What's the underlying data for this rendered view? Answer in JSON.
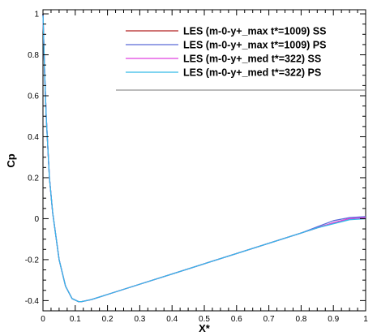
{
  "chart_data": {
    "type": "line",
    "xlabel": "X*",
    "ylabel": "Cp",
    "xlim": [
      0,
      1
    ],
    "ylim": [
      -0.45,
      1.02
    ],
    "x_ticks": [
      "0",
      "0.1",
      "0.2",
      "0.3",
      "0.4",
      "0.5",
      "0.6",
      "0.7",
      "0.8",
      "0.9",
      "1"
    ],
    "y_ticks": [
      "-0.4",
      "-0.2",
      "0",
      "0.2",
      "0.4",
      "0.6",
      "0.8",
      "1"
    ],
    "legend_position": "top-right",
    "grid": false,
    "series": [
      {
        "name": "LES (m-0-y+_max t*=1009) SS",
        "color": "#b22222",
        "x": [
          0.0,
          0.005,
          0.01,
          0.02,
          0.03,
          0.05,
          0.07,
          0.09,
          0.11,
          0.12,
          0.15,
          0.2,
          0.3,
          0.4,
          0.5,
          0.6,
          0.7,
          0.8,
          0.85,
          0.9,
          0.95,
          1.0
        ],
        "y": [
          1.0,
          0.72,
          0.5,
          0.2,
          0.03,
          -0.2,
          -0.33,
          -0.39,
          -0.405,
          -0.405,
          -0.395,
          -0.37,
          -0.32,
          -0.27,
          -0.22,
          -0.17,
          -0.12,
          -0.07,
          -0.045,
          -0.02,
          0.0,
          0.0
        ]
      },
      {
        "name": "LES (m-0-y+_max t*=1009) PS",
        "color": "#5a6bd8",
        "x": [
          0.0,
          0.005,
          0.01,
          0.02,
          0.03,
          0.05,
          0.07,
          0.09,
          0.11,
          0.12,
          0.15,
          0.2,
          0.3,
          0.4,
          0.5,
          0.6,
          0.7,
          0.8,
          0.85,
          0.9,
          0.95,
          1.0
        ],
        "y": [
          1.0,
          0.72,
          0.5,
          0.2,
          0.03,
          -0.2,
          -0.33,
          -0.39,
          -0.405,
          -0.405,
          -0.395,
          -0.37,
          -0.32,
          -0.27,
          -0.22,
          -0.17,
          -0.12,
          -0.07,
          -0.04,
          -0.01,
          0.005,
          0.01
        ]
      },
      {
        "name": "LES (m-0-y+_med t*=322) SS",
        "color": "#e040e0",
        "x": [
          0.0,
          0.005,
          0.01,
          0.02,
          0.03,
          0.05,
          0.07,
          0.09,
          0.11,
          0.12,
          0.15,
          0.2,
          0.3,
          0.4,
          0.5,
          0.6,
          0.7,
          0.8,
          0.85,
          0.9,
          0.95,
          1.0
        ],
        "y": [
          1.0,
          0.72,
          0.5,
          0.2,
          0.03,
          -0.2,
          -0.33,
          -0.39,
          -0.405,
          -0.405,
          -0.395,
          -0.37,
          -0.32,
          -0.27,
          -0.22,
          -0.17,
          -0.12,
          -0.07,
          -0.045,
          -0.02,
          0.0,
          0.005
        ]
      },
      {
        "name": "LES (m-0-y+_med t*=322) PS",
        "color": "#33bbe8",
        "x": [
          0.0,
          0.005,
          0.01,
          0.02,
          0.03,
          0.05,
          0.07,
          0.09,
          0.11,
          0.12,
          0.15,
          0.2,
          0.3,
          0.4,
          0.5,
          0.6,
          0.7,
          0.8,
          0.85,
          0.9,
          0.95,
          1.0
        ],
        "y": [
          1.0,
          0.72,
          0.5,
          0.2,
          0.03,
          -0.2,
          -0.33,
          -0.39,
          -0.405,
          -0.405,
          -0.395,
          -0.37,
          -0.32,
          -0.27,
          -0.22,
          -0.17,
          -0.12,
          -0.07,
          -0.045,
          -0.025,
          -0.005,
          0.0
        ]
      }
    ]
  }
}
